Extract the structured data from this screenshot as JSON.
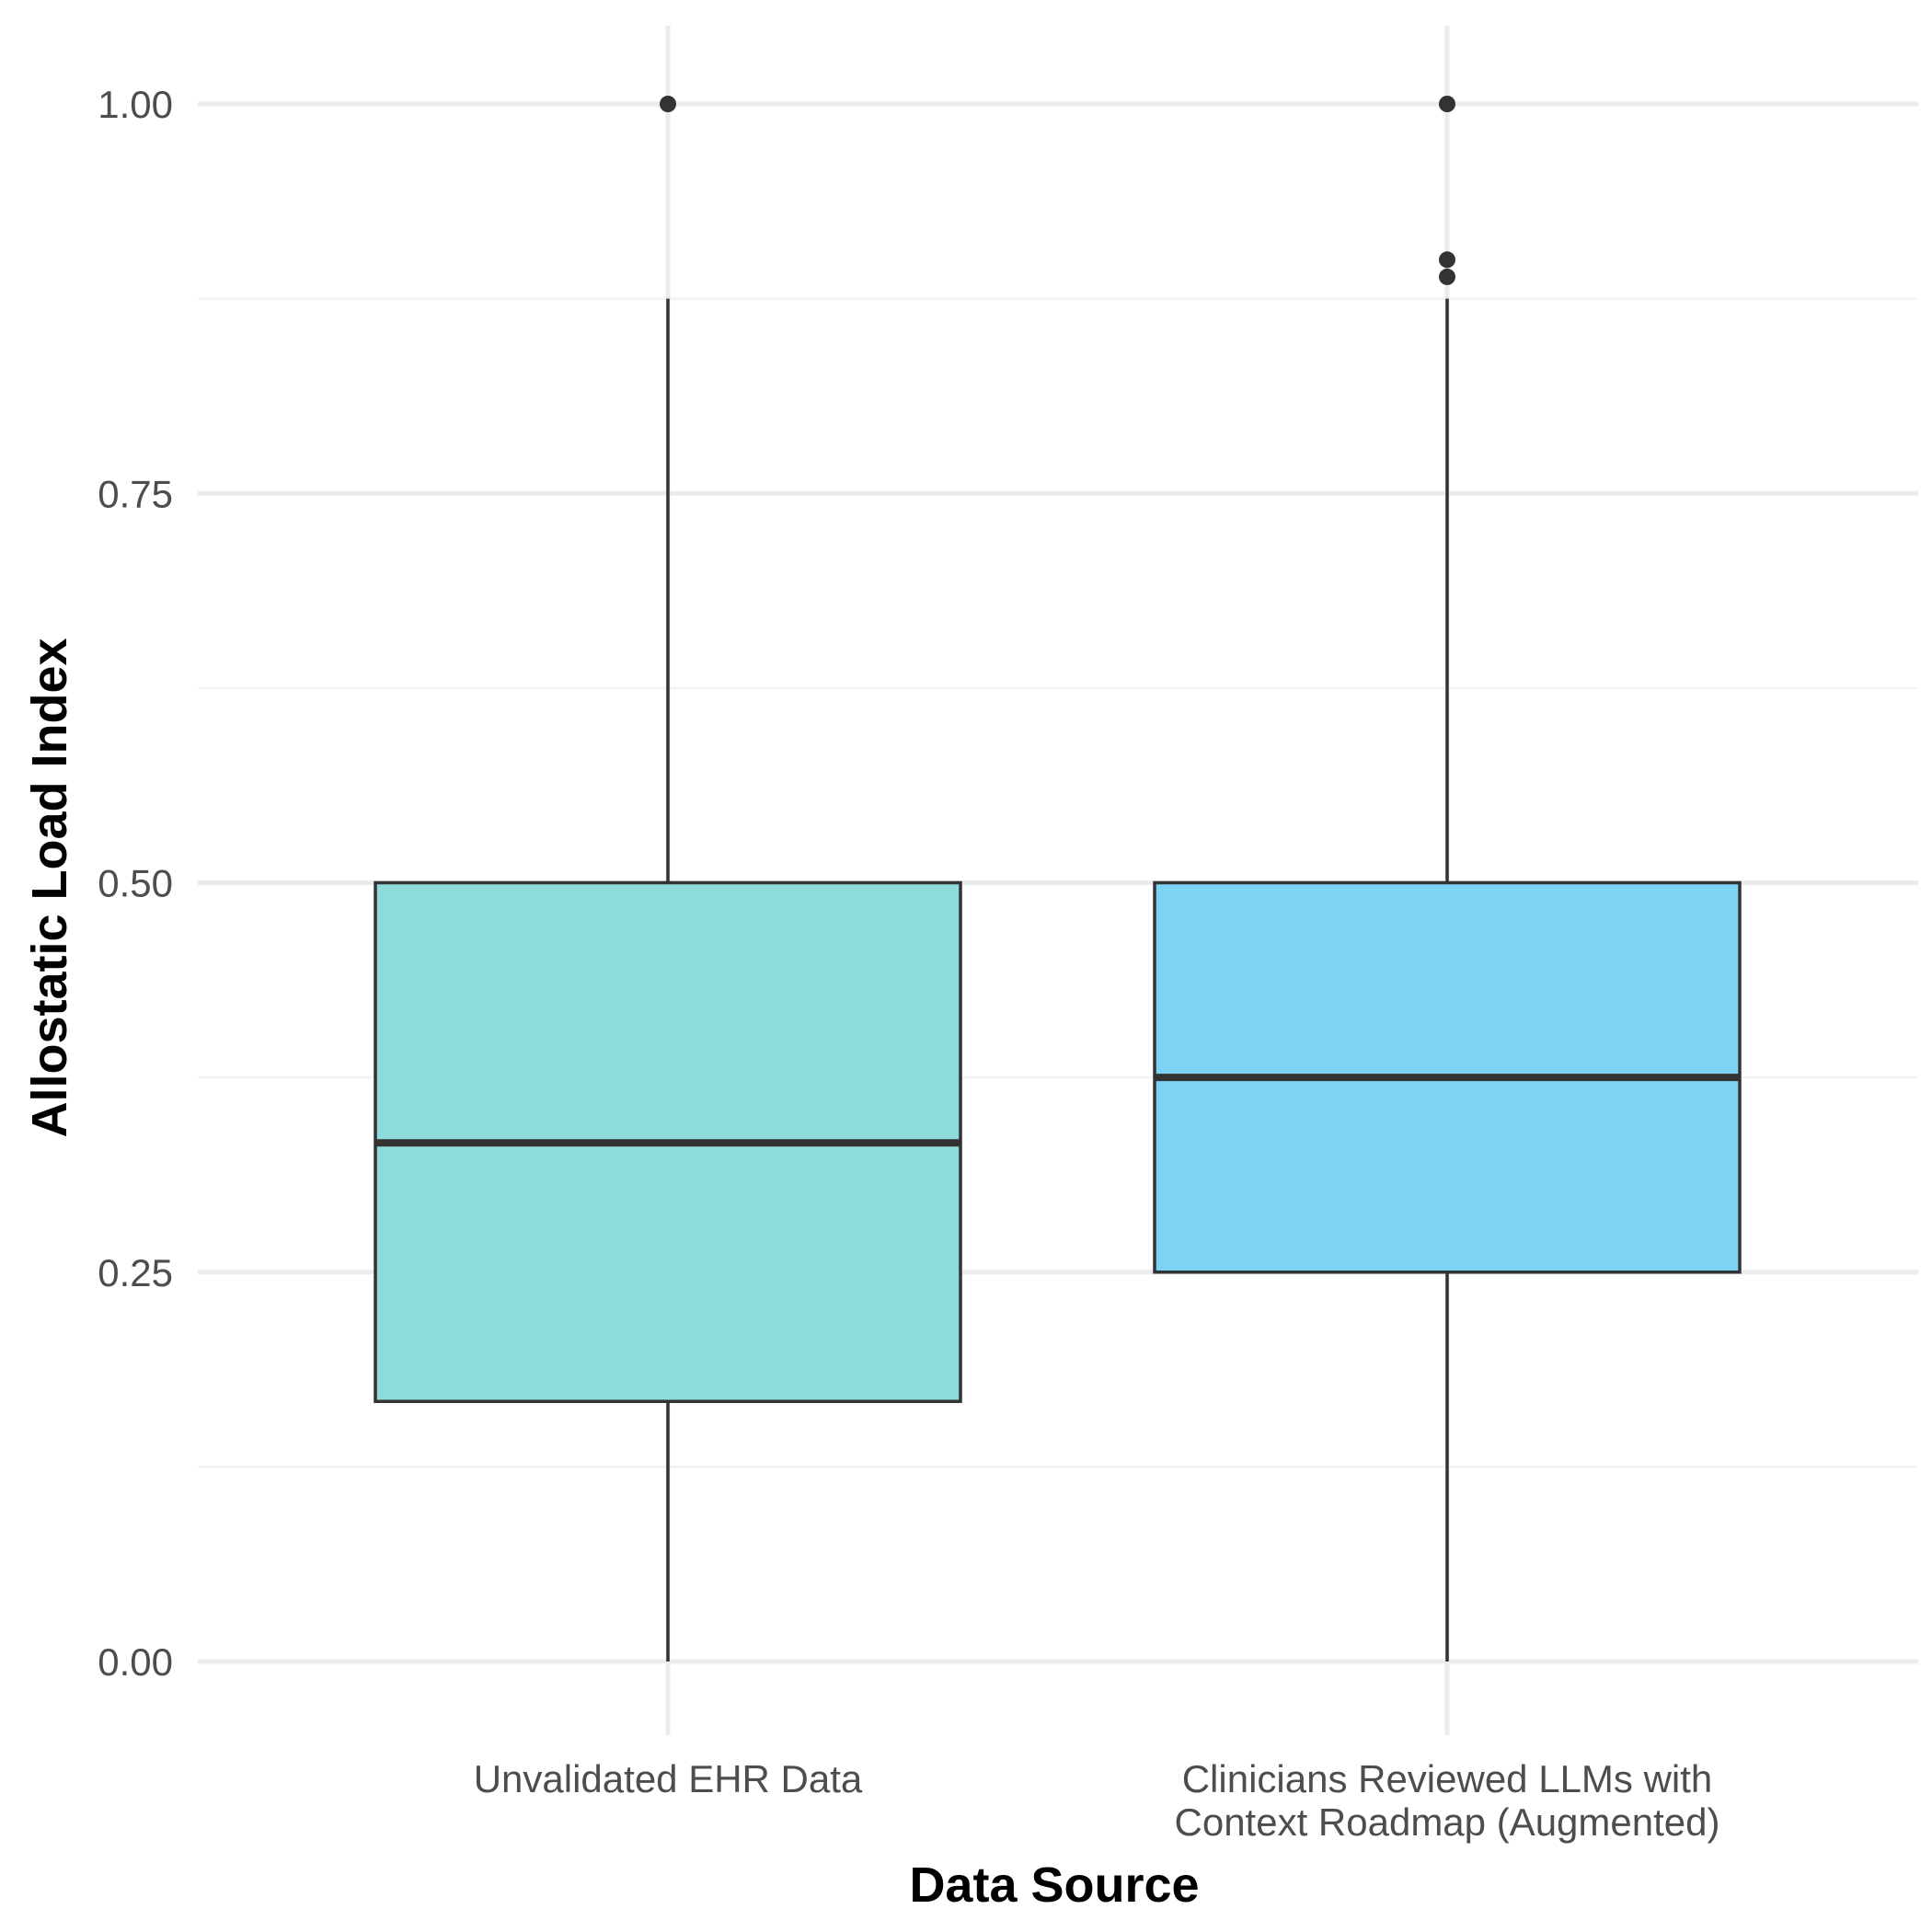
{
  "chart_data": {
    "type": "box",
    "xlabel": "Data Source",
    "ylabel": "Allostatic Load Index",
    "ylim": [
      -0.05,
      1.05
    ],
    "y_ticks": [
      {
        "value": 0.0,
        "label": "0.00"
      },
      {
        "value": 0.25,
        "label": "0.25"
      },
      {
        "value": 0.5,
        "label": "0.50"
      },
      {
        "value": 0.75,
        "label": "0.75"
      },
      {
        "value": 1.0,
        "label": "1.00"
      }
    ],
    "y_minor_ticks": [
      0.125,
      0.375,
      0.625,
      0.875
    ],
    "grid": true,
    "legend": "none",
    "categories": [
      {
        "label_lines": [
          "Unvalidated EHR Data"
        ],
        "fill": "#8ddcdb",
        "lower_whisker": 0.0,
        "q1": 0.167,
        "median": 0.333,
        "q3": 0.5,
        "upper_whisker": 0.875,
        "outliers": [
          1.0
        ]
      },
      {
        "label_lines": [
          "Clinicians Reviewed LLMs with",
          "Context Roadmap (Augmented)"
        ],
        "fill": "#7dd3f4",
        "lower_whisker": 0.0,
        "q1": 0.25,
        "median": 0.375,
        "q3": 0.5,
        "upper_whisker": 0.875,
        "outliers": [
          1.0,
          0.9,
          0.889
        ]
      }
    ],
    "colors": {
      "grid_major": "#ebebeb",
      "grid_minor": "#f2f2f2",
      "box_outline": "#333333",
      "outlier": "#333333"
    }
  }
}
